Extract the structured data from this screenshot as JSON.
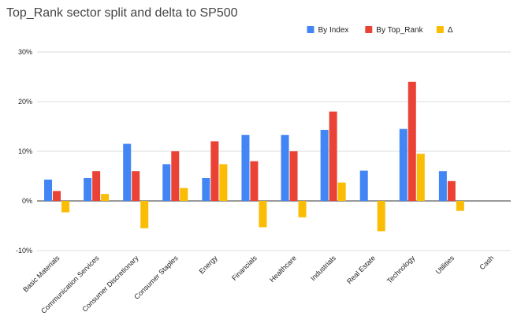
{
  "chart_data": {
    "type": "bar",
    "title": "Top_Rank sector split and delta to SP500",
    "xlabel": "",
    "ylabel": "",
    "ylim": [
      -10,
      30
    ],
    "yticks": [
      -10,
      0,
      10,
      20,
      30
    ],
    "ytick_labels": [
      "-10%",
      "0%",
      "10%",
      "20%",
      "30%"
    ],
    "grid": true,
    "legend_position": "top-right",
    "categories": [
      "Basic Materials",
      "Communication Services",
      "Consumer Discretionary",
      "Consumer Staples",
      "Energy",
      "Financials",
      "Healthcare",
      "Industrials",
      "Real Estate",
      "Technology",
      "Utilities",
      "Cash"
    ],
    "series": [
      {
        "name": "By Index",
        "color": "#4285f4",
        "values": [
          4.3,
          4.6,
          11.5,
          7.4,
          4.6,
          13.3,
          13.3,
          14.3,
          6.1,
          14.5,
          6.0,
          0
        ]
      },
      {
        "name": "By Top_Rank",
        "color": "#ea4335",
        "values": [
          2.0,
          6.0,
          6.0,
          10.0,
          12.0,
          8.0,
          10.0,
          18.0,
          0,
          24.0,
          4.0,
          0
        ]
      },
      {
        "name": "Δ",
        "color": "#fbbc04",
        "values": [
          -2.3,
          1.4,
          -5.5,
          2.6,
          7.4,
          -5.3,
          -3.3,
          3.7,
          -6.1,
          9.5,
          -2.0,
          0
        ]
      }
    ]
  }
}
